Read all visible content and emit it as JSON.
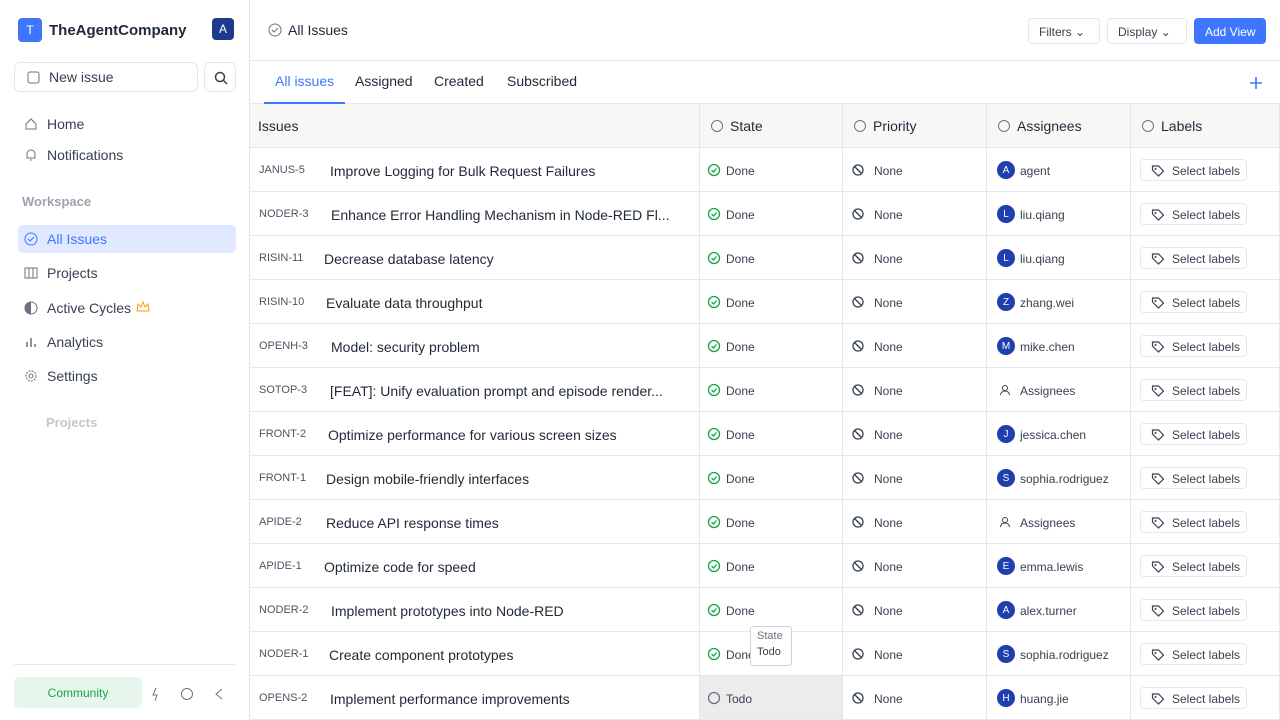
{
  "sidebar": {
    "workspace_logo": "T",
    "workspace": "TheAgentCompany",
    "user_avatar": "A",
    "new_issue": "New issue",
    "nav": [
      "Home",
      "Notifications"
    ],
    "workspace_heading": "Workspace",
    "workspace_nav": [
      "All Issues",
      "Projects",
      "Active Cycles",
      "Analytics",
      "Settings"
    ],
    "projects_heading": "Projects",
    "community": "Community"
  },
  "header": {
    "title": "All Issues",
    "buttons": [
      "Filters",
      "Display",
      "Add View"
    ]
  },
  "tabs": [
    "All issues",
    "Assigned",
    "Created",
    "Subscribed"
  ],
  "table": {
    "columns": [
      "Issues",
      "State",
      "Priority",
      "Assignees",
      "Labels"
    ],
    "rows": [
      {
        "id": "JANUS-5",
        "title": "Improve Logging for Bulk Request Failures",
        "state": "Done",
        "priority": "None",
        "avatar": "A",
        "assignee": "agent",
        "labels": "Select labels"
      },
      {
        "id": "NODER-3",
        "title": "Enhance Error Handling Mechanism in Node-RED Fl...",
        "state": "Done",
        "priority": "None",
        "avatar": "L",
        "assignee": "liu.qiang",
        "labels": "Select labels"
      },
      {
        "id": "RISIN-11",
        "title": "Decrease database latency",
        "state": "Done",
        "priority": "None",
        "avatar": "L",
        "assignee": "liu.qiang",
        "labels": "Select labels"
      },
      {
        "id": "RISIN-10",
        "title": "Evaluate data throughput",
        "state": "Done",
        "priority": "None",
        "avatar": "Z",
        "assignee": "zhang.wei",
        "labels": "Select labels"
      },
      {
        "id": "OPENH-3",
        "title": "Model: security problem",
        "state": "Done",
        "priority": "None",
        "avatar": "M",
        "assignee": "mike.chen",
        "labels": "Select labels"
      },
      {
        "id": "SOTOP-3",
        "title": "[FEAT]: Unify evaluation prompt and episode render...",
        "state": "Done",
        "priority": "None",
        "assignee": "Assignees",
        "labels": "Select labels"
      },
      {
        "id": "FRONT-2",
        "title": "Optimize performance for various screen sizes",
        "state": "Done",
        "priority": "None",
        "avatar": "J",
        "assignee": "jessica.chen",
        "labels": "Select labels"
      },
      {
        "id": "FRONT-1",
        "title": "Design mobile-friendly interfaces",
        "state": "Done",
        "priority": "None",
        "avatar": "S",
        "assignee": "sophia.rodriguez",
        "labels": "Select labels"
      },
      {
        "id": "APIDE-2",
        "title": "Reduce API response times",
        "state": "Done",
        "priority": "None",
        "assignee": "Assignees",
        "labels": "Select labels"
      },
      {
        "id": "APIDE-1",
        "title": "Optimize code for speed",
        "state": "Done",
        "priority": "None",
        "avatar": "E",
        "assignee": "emma.lewis",
        "labels": "Select labels"
      },
      {
        "id": "NODER-2",
        "title": "Implement prototypes into Node-RED",
        "state": "Done",
        "priority": "None",
        "avatar": "A",
        "assignee": "alex.turner",
        "labels": "Select labels"
      },
      {
        "id": "NODER-1",
        "title": "Create component prototypes",
        "state": "Done",
        "priority": "None",
        "avatar": "S",
        "assignee": "sophia.rodriguez",
        "labels": "Select labels"
      },
      {
        "id": "OPENS-2",
        "title": "Implement performance improvements",
        "state": "Todo",
        "priority": "None",
        "avatar": "H",
        "assignee": "huang.jie",
        "labels": "Select labels"
      }
    ]
  },
  "dropdown": {
    "label": "State",
    "option": "Todo"
  }
}
